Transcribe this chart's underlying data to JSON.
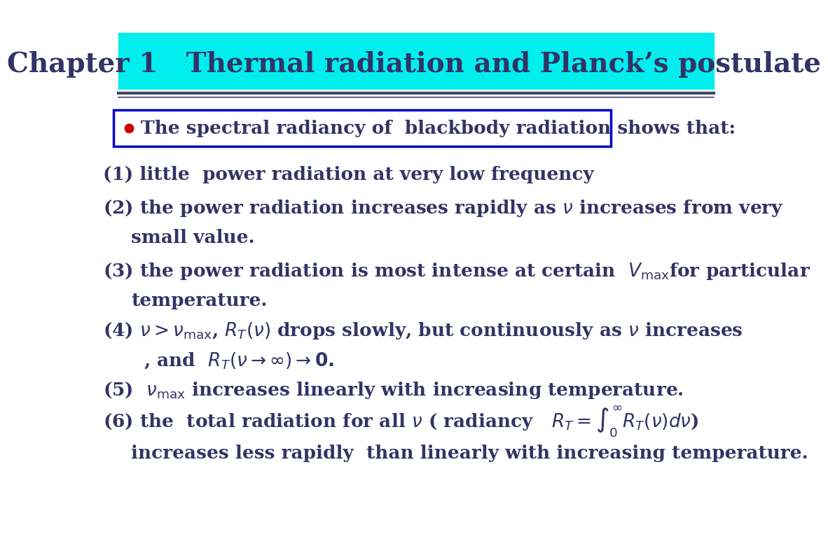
{
  "title": "Chapter 1   Thermal radiation and Planck’s postulate",
  "title_bg": "#00EEEE",
  "title_color": "#333366",
  "bullet_box_color": "#0000CC",
  "bullet_dot_color": "#CC0000",
  "bullet_text": "The spectral radiancy of  blackbody radiation shows that:",
  "text_color": "#333366",
  "bg_color": "#FFFFFF",
  "font_size": 19,
  "title_font_size": 28
}
